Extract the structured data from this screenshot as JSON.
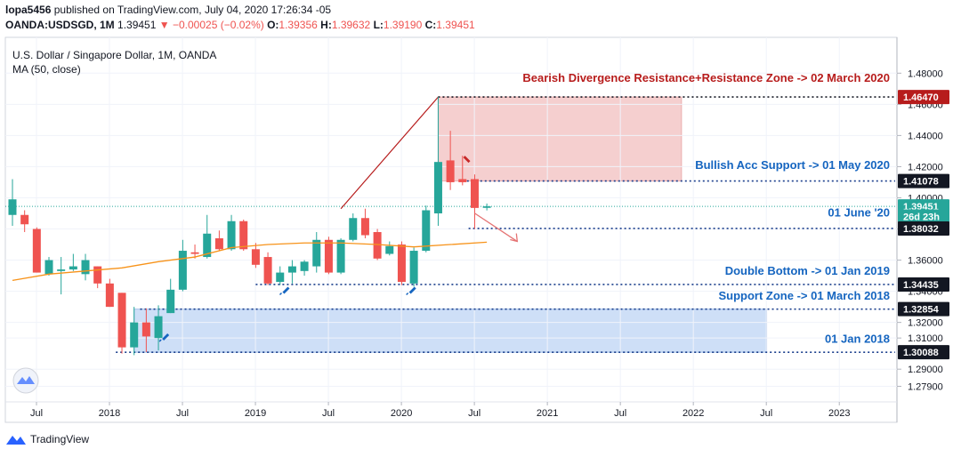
{
  "header": {
    "publisher": "lopa5456",
    "published_text": "published on TradingView.com, July 04, 2020 17:26:34 -05",
    "symbol": "OANDA:USDSGD, 1M",
    "last": "1.39451",
    "change_arrow": "▼",
    "change": "−0.00025 (−0.02%)",
    "o_label": "O:",
    "o": "1.39356",
    "h_label": "H:",
    "h": "1.39632",
    "l_label": "L:",
    "l": "1.39190",
    "c_label": "C:",
    "c": "1.39451"
  },
  "legend": {
    "title": "U.S. Dollar / Singapore Dollar, 1M, OANDA",
    "indicator": "MA (50, close)"
  },
  "footer": {
    "brand": "TradingView"
  },
  "colors": {
    "up": "#26a69a",
    "down": "#ef5350",
    "ma": "#f7931a",
    "resistance_zone": "#f4c7c7",
    "support_zone": "#c9dcf7",
    "label_red": "#b71c1c",
    "label_blue": "#1565c0",
    "dark_badge": "#131722"
  },
  "chart_data": {
    "type": "candlestick",
    "timeframe": "1M",
    "y_range": [
      1.269,
      1.503
    ],
    "y_ticks": [
      "1.48000",
      "1.46000",
      "1.44000",
      "1.42000",
      "1.40000",
      "1.38000",
      "1.36000",
      "1.34000",
      "1.32000",
      "1.31000",
      "1.29000",
      "1.27900"
    ],
    "x_ticks": [
      {
        "label": "Jul",
        "i": 0
      },
      {
        "label": "2018",
        "i": 6
      },
      {
        "label": "Jul",
        "i": 12
      },
      {
        "label": "2019",
        "i": 18
      },
      {
        "label": "Jul",
        "i": 24
      },
      {
        "label": "2020",
        "i": 30
      },
      {
        "label": "Jul",
        "i": 36
      },
      {
        "label": "2021",
        "i": 42
      },
      {
        "label": "Jul",
        "i": 48
      },
      {
        "label": "2022",
        "i": 54
      },
      {
        "label": "Jul",
        "i": 60
      },
      {
        "label": "2023",
        "i": 66
      }
    ],
    "candles": [
      {
        "o": 1.389,
        "h": 1.412,
        "l": 1.382,
        "c": 1.399
      },
      {
        "o": 1.389,
        "h": 1.392,
        "l": 1.378,
        "c": 1.383
      },
      {
        "o": 1.38,
        "h": 1.381,
        "l": 1.352,
        "c": 1.352
      },
      {
        "o": 1.351,
        "h": 1.362,
        "l": 1.35,
        "c": 1.36
      },
      {
        "o": 1.353,
        "h": 1.362,
        "l": 1.338,
        "c": 1.354
      },
      {
        "o": 1.354,
        "h": 1.364,
        "l": 1.353,
        "c": 1.356
      },
      {
        "o": 1.351,
        "h": 1.364,
        "l": 1.347,
        "c": 1.36
      },
      {
        "o": 1.356,
        "h": 1.356,
        "l": 1.342,
        "c": 1.345
      },
      {
        "o": 1.345,
        "h": 1.348,
        "l": 1.33,
        "c": 1.33
      },
      {
        "o": 1.339,
        "h": 1.339,
        "l": 1.3,
        "c": 1.304
      },
      {
        "o": 1.304,
        "h": 1.33,
        "l": 1.299,
        "c": 1.32
      },
      {
        "o": 1.32,
        "h": 1.329,
        "l": 1.301,
        "c": 1.311
      },
      {
        "o": 1.31,
        "h": 1.331,
        "l": 1.302,
        "c": 1.324
      },
      {
        "o": 1.326,
        "h": 1.348,
        "l": 1.326,
        "c": 1.341
      },
      {
        "o": 1.341,
        "h": 1.373,
        "l": 1.34,
        "c": 1.366
      },
      {
        "o": 1.365,
        "h": 1.37,
        "l": 1.361,
        "c": 1.364
      },
      {
        "o": 1.362,
        "h": 1.389,
        "l": 1.361,
        "c": 1.377
      },
      {
        "o": 1.374,
        "h": 1.379,
        "l": 1.366,
        "c": 1.367
      },
      {
        "o": 1.367,
        "h": 1.389,
        "l": 1.366,
        "c": 1.385
      },
      {
        "o": 1.385,
        "h": 1.386,
        "l": 1.366,
        "c": 1.367
      },
      {
        "o": 1.367,
        "h": 1.371,
        "l": 1.355,
        "c": 1.357
      },
      {
        "o": 1.362,
        "h": 1.365,
        "l": 1.344,
        "c": 1.345
      },
      {
        "o": 1.346,
        "h": 1.356,
        "l": 1.344,
        "c": 1.352
      },
      {
        "o": 1.352,
        "h": 1.36,
        "l": 1.345,
        "c": 1.356
      },
      {
        "o": 1.353,
        "h": 1.36,
        "l": 1.35,
        "c": 1.359
      },
      {
        "o": 1.356,
        "h": 1.378,
        "l": 1.352,
        "c": 1.373
      },
      {
        "o": 1.373,
        "h": 1.375,
        "l": 1.351,
        "c": 1.352
      },
      {
        "o": 1.352,
        "h": 1.374,
        "l": 1.351,
        "c": 1.373
      },
      {
        "o": 1.373,
        "h": 1.39,
        "l": 1.372,
        "c": 1.387
      },
      {
        "o": 1.387,
        "h": 1.393,
        "l": 1.374,
        "c": 1.376
      },
      {
        "o": 1.378,
        "h": 1.38,
        "l": 1.36,
        "c": 1.361
      },
      {
        "o": 1.364,
        "h": 1.372,
        "l": 1.363,
        "c": 1.369
      },
      {
        "o": 1.37,
        "h": 1.372,
        "l": 1.344,
        "c": 1.346
      },
      {
        "o": 1.345,
        "h": 1.368,
        "l": 1.343,
        "c": 1.366
      },
      {
        "o": 1.366,
        "h": 1.395,
        "l": 1.365,
        "c": 1.392
      },
      {
        "o": 1.39,
        "h": 1.4647,
        "l": 1.382,
        "c": 1.423
      },
      {
        "o": 1.424,
        "h": 1.443,
        "l": 1.405,
        "c": 1.41
      },
      {
        "o": 1.412,
        "h": 1.427,
        "l": 1.408,
        "c": 1.41
      },
      {
        "o": 1.412,
        "h": 1.415,
        "l": 1.38,
        "c": 1.3935
      },
      {
        "o": 1.39356,
        "h": 1.39632,
        "l": 1.3919,
        "c": 1.39451
      }
    ],
    "ma50": [
      [
        0,
        1.347
      ],
      [
        3,
        1.351
      ],
      [
        6,
        1.353
      ],
      [
        9,
        1.355
      ],
      [
        12,
        1.359
      ],
      [
        15,
        1.362
      ],
      [
        18,
        1.368
      ],
      [
        21,
        1.37
      ],
      [
        24,
        1.371
      ],
      [
        27,
        1.371
      ],
      [
        30,
        1.37
      ],
      [
        33,
        1.3685
      ],
      [
        36,
        1.37
      ],
      [
        39,
        1.3715
      ]
    ],
    "price_levels": [
      {
        "value": "1.46470",
        "y": 1.4647,
        "badge": "red"
      },
      {
        "value": "1.41078",
        "y": 1.41078,
        "badge": "blue"
      },
      {
        "value": "1.39451",
        "y": 1.39451,
        "badge": "green"
      },
      {
        "value": "26d 23h",
        "y": 1.388,
        "badge": "green"
      },
      {
        "value": "1.38032",
        "y": 1.38032,
        "badge": "blue"
      },
      {
        "value": "1.34435",
        "y": 1.34435,
        "badge": "blue"
      },
      {
        "value": "1.32854",
        "y": 1.32854,
        "badge": "blue"
      },
      {
        "value": "1.30088",
        "y": 1.30088,
        "badge": "blue"
      }
    ],
    "annotations": [
      {
        "text": "Bearish Divergence Resistance+Resistance Zone -> 02 March 2020",
        "color": "red"
      },
      {
        "text": "Bullish Acc Support -> 01 May 2020",
        "color": "blue"
      },
      {
        "text": "01 June '20",
        "color": "blue"
      },
      {
        "text": "Double Bottom -> 01 Jan 2019",
        "color": "blue"
      },
      {
        "text": "Support Zone -> 01 March 2018",
        "color": "blue"
      },
      {
        "text": "01 Jan 2018",
        "color": "blue"
      }
    ],
    "zones": [
      {
        "name": "resistance",
        "from_i": 35,
        "to_i": 55,
        "y_top": 1.4647,
        "y_bottom": 1.41078
      },
      {
        "name": "support",
        "from_i": 10,
        "to_i": 62,
        "y_top": 1.32854,
        "y_bottom": 1.30088
      }
    ]
  }
}
